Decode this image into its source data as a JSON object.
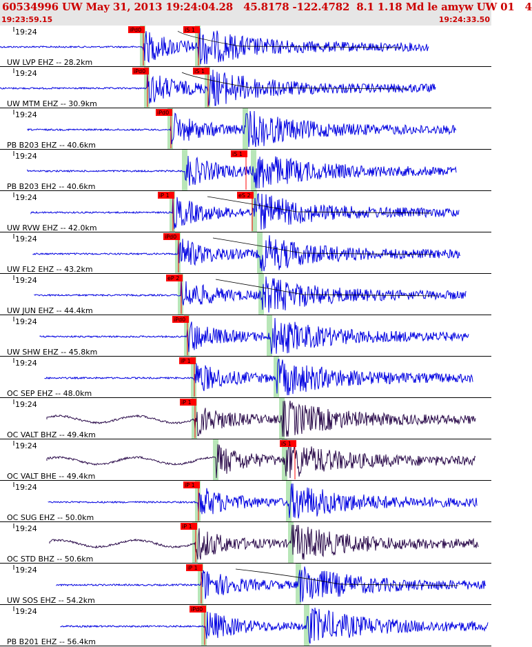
{
  "header": {
    "title": "60534996 UW May 31, 2013 19:24:04.28   45.8178 -122.4782  8.1 1.18 Md le amyw UW 01   4",
    "time_start": "19:23:59.15",
    "time_end": "19:24:33.50"
  },
  "colors": {
    "header_bg": "#e6e6e6",
    "header_text": "#cc0000",
    "trace_blue": "#0000e0",
    "trace_dark": "#2a0a4a",
    "pick_box": "#ff0000",
    "window_green": "#b8e6b8"
  },
  "traces": [
    {
      "time_label": "19:24",
      "station_label": "UW LVP EHZ -- 28.2km",
      "color": "blue",
      "picks": [
        {
          "label": "iPd0",
          "t": 208
        },
        {
          "label": "iS 1",
          "t": 288
        }
      ]
    },
    {
      "time_label": "19:24",
      "station_label": "UW MTM EHZ -- 30.9km",
      "color": "blue",
      "picks": [
        {
          "label": "iPd0",
          "t": 214
        },
        {
          "label": "iS 1",
          "t": 302
        }
      ]
    },
    {
      "time_label": "19:24",
      "station_label": "PB B203 EHZ -- 40.6km",
      "color": "blue",
      "picks": [
        {
          "label": "iPd0",
          "t": 248
        }
      ]
    },
    {
      "time_label": "19:24",
      "station_label": "PB B203 EH2 -- 40.6km",
      "color": "blue",
      "picks": [
        {
          "label": "iS 1",
          "t": 357
        }
      ]
    },
    {
      "time_label": "19:24",
      "station_label": "UW RVW EHZ -- 42.0km",
      "color": "blue",
      "picks": [
        {
          "label": "iP 1",
          "t": 251
        },
        {
          "label": "eS 2",
          "t": 366
        }
      ]
    },
    {
      "time_label": "19:24",
      "station_label": "UW FL2 EHZ -- 43.2km",
      "color": "blue",
      "picks": [
        {
          "label": "iPd0",
          "t": 259
        }
      ]
    },
    {
      "time_label": "19:24",
      "station_label": "UW JUN EHZ -- 44.4km",
      "color": "blue",
      "picks": [
        {
          "label": "eP 2",
          "t": 263
        }
      ]
    },
    {
      "time_label": "19:24",
      "station_label": "UW SHW EHZ -- 45.8km",
      "color": "blue",
      "picks": [
        {
          "label": "iPd0",
          "t": 272
        }
      ]
    },
    {
      "time_label": "19:24",
      "station_label": "OC SEP EHZ -- 48.0km",
      "color": "blue",
      "picks": [
        {
          "label": "iP 1",
          "t": 282
        }
      ]
    },
    {
      "time_label": "19:24",
      "station_label": "OC VALT BHZ -- 49.4km",
      "color": "dark",
      "picks": [
        {
          "label": "iP 1",
          "t": 283
        }
      ]
    },
    {
      "time_label": "19:24",
      "station_label": "OC VALT BHE -- 49.4km",
      "color": "dark",
      "picks": [
        {
          "label": "iS 1",
          "t": 428
        }
      ]
    },
    {
      "time_label": "19:24",
      "station_label": "OC SUG EHZ -- 50.0km",
      "color": "blue",
      "picks": [
        {
          "label": "iP 1",
          "t": 288
        }
      ]
    },
    {
      "time_label": "19:24",
      "station_label": "OC STD BHZ -- 50.6km",
      "color": "dark",
      "picks": [
        {
          "label": "iP 1",
          "t": 284
        }
      ]
    },
    {
      "time_label": "19:24",
      "station_label": "UW SOS EHZ -- 54.2km",
      "color": "blue",
      "picks": [
        {
          "label": "iP 1",
          "t": 292
        }
      ]
    },
    {
      "time_label": "19:24",
      "station_label": "PB B201 EHZ -- 56.4km",
      "color": "blue",
      "picks": [
        {
          "label": "iPd0",
          "t": 297
        }
      ]
    }
  ]
}
